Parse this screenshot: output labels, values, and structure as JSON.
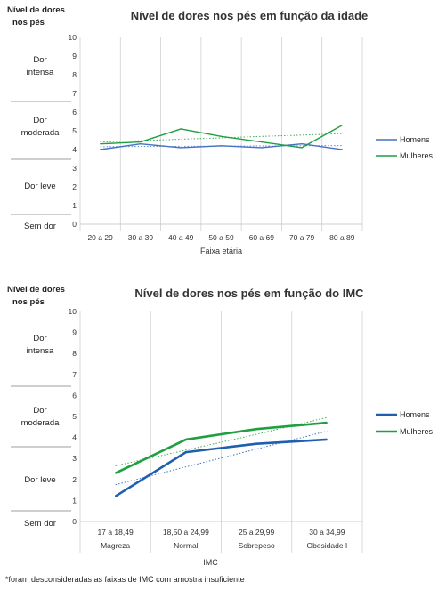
{
  "footnote": "*foram desconsideradas as faixas de IMC com amostra insuficiente",
  "colors": {
    "homens_1": "#4472C4",
    "mulheres_1": "#1FA040",
    "homens_2": "#1F5FAF",
    "mulheres_2": "#1FA040"
  },
  "chart_data": [
    {
      "type": "line",
      "title": "Nível de dores nos pés em função da idade",
      "ylabel": "Nível de dores nos pés",
      "xlabel": "Faixa etária",
      "ylim": [
        0,
        10
      ],
      "yticks": [
        "0",
        "1",
        "2",
        "3",
        "4",
        "5",
        "6",
        "7",
        "8",
        "9",
        "10"
      ],
      "bands": [
        "Dor intensa",
        "Dor moderada",
        "Dor leve",
        "Sem dor"
      ],
      "categories": [
        "20 a 29",
        "30 a 39",
        "40 a 49",
        "50 a 59",
        "60 a 69",
        "70 a 79",
        "80 a 89"
      ],
      "series": [
        {
          "name": "Homens",
          "values": [
            4.0,
            4.3,
            4.1,
            4.2,
            4.1,
            4.3,
            4.0
          ],
          "trend": [
            4.15,
            4.16,
            4.17,
            4.18,
            4.19,
            4.2,
            4.21
          ]
        },
        {
          "name": "Mulheres",
          "values": [
            4.3,
            4.4,
            5.1,
            4.7,
            4.4,
            4.1,
            5.3
          ],
          "trend": [
            4.4,
            4.47,
            4.55,
            4.62,
            4.7,
            4.77,
            4.85
          ]
        }
      ],
      "legend": "right",
      "grid": "vertical"
    },
    {
      "type": "line",
      "title": "Nível de dores nos pés em função do IMC",
      "ylabel": "Nível de dores nos pés",
      "xlabel": "IMC",
      "ylim": [
        0,
        10
      ],
      "yticks": [
        "0",
        "1",
        "2",
        "3",
        "4",
        "5",
        "6",
        "7",
        "8",
        "9",
        "10"
      ],
      "bands": [
        "Dor intensa",
        "Dor moderada",
        "Dor leve",
        "Sem dor"
      ],
      "categories": [
        "17 a 18,49",
        "18,50 a 24,99",
        "25 a 29,99",
        "30 a 34,99"
      ],
      "category_groups": [
        "Magreza",
        "Normal",
        "Sobrepeso",
        "Obesidade I"
      ],
      "series": [
        {
          "name": "Homens",
          "values": [
            1.2,
            3.3,
            3.7,
            3.9
          ],
          "trend": [
            1.75,
            2.6,
            3.45,
            4.3
          ]
        },
        {
          "name": "Mulheres",
          "values": [
            2.3,
            3.9,
            4.4,
            4.7
          ],
          "trend": [
            2.65,
            3.4,
            4.15,
            4.95
          ]
        }
      ],
      "legend": "right",
      "grid": "vertical"
    }
  ]
}
